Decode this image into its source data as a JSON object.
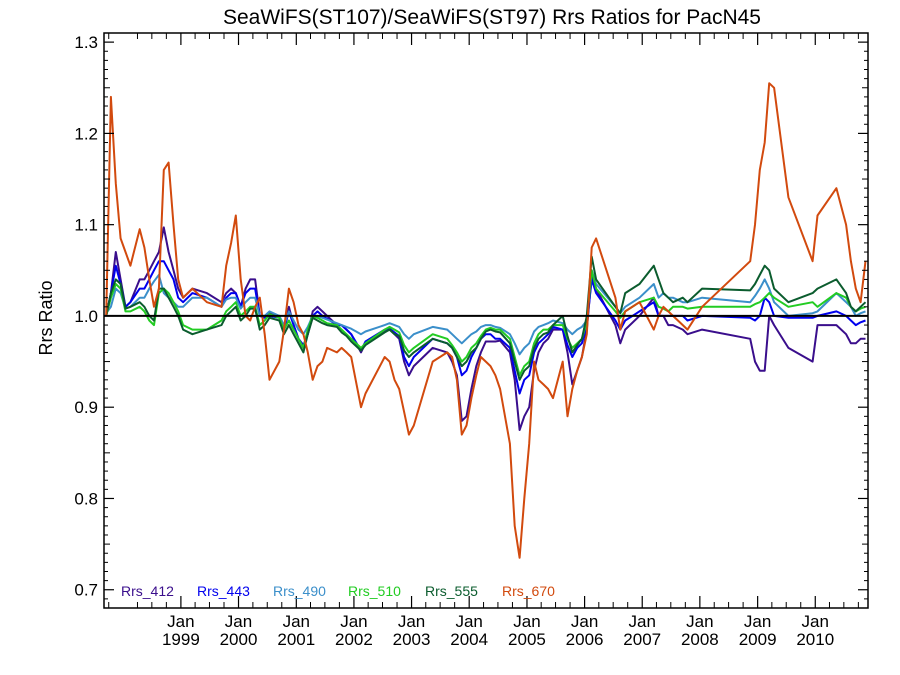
{
  "chart_data": {
    "type": "line",
    "title": "SeaWiFS(ST107)/SeaWiFS(ST97)  Rrs Ratios for PacN45",
    "ylabel": "Rrs Ratio",
    "xlabel": "",
    "ylim": [
      0.68,
      1.31
    ],
    "xlim": [
      "1997-09-01",
      "2010-12-01"
    ],
    "y_ticks": [
      "0.7",
      "0.8",
      "0.9",
      "1.0",
      "1.1",
      "1.2",
      "1.3"
    ],
    "x_ticks": [
      {
        "date": "1999-01-01",
        "line1": "Jan",
        "line2": "1999"
      },
      {
        "date": "2000-01-01",
        "line1": "Jan",
        "line2": "2000"
      },
      {
        "date": "2001-01-01",
        "line1": "Jan",
        "line2": "2001"
      },
      {
        "date": "2002-01-01",
        "line1": "Jan",
        "line2": "2002"
      },
      {
        "date": "2003-01-01",
        "line1": "Jan",
        "line2": "2003"
      },
      {
        "date": "2004-01-01",
        "line1": "Jan",
        "line2": "2004"
      },
      {
        "date": "2005-01-01",
        "line1": "Jan",
        "line2": "2005"
      },
      {
        "date": "2006-01-01",
        "line1": "Jan",
        "line2": "2006"
      },
      {
        "date": "2007-01-01",
        "line1": "Jan",
        "line2": "2007"
      },
      {
        "date": "2008-01-01",
        "line1": "Jan",
        "line2": "2008"
      },
      {
        "date": "2009-01-01",
        "line1": "Jan",
        "line2": "2009"
      },
      {
        "date": "2010-01-01",
        "line1": "Jan",
        "line2": "2010"
      }
    ],
    "reference_line": 1.0,
    "grid": false,
    "legend_position": "bottom-left",
    "x": [
      "1997-09-15",
      "1997-10-15",
      "1997-11-15",
      "1997-12-15",
      "1998-01-15",
      "1998-02-15",
      "1998-04-15",
      "1998-05-15",
      "1998-06-15",
      "1998-07-15",
      "1998-08-15",
      "1998-09-15",
      "1998-10-15",
      "1998-11-15",
      "1998-12-15",
      "1999-01-15",
      "1999-03-15",
      "1999-06-15",
      "1999-09-15",
      "1999-10-15",
      "1999-11-15",
      "1999-12-15",
      "2000-01-15",
      "2000-02-15",
      "2000-03-15",
      "2000-04-15",
      "2000-05-15",
      "2000-06-15",
      "2000-07-15",
      "2000-09-15",
      "2000-10-15",
      "2000-11-15",
      "2000-12-15",
      "2001-01-15",
      "2001-02-15",
      "2001-03-15",
      "2001-04-15",
      "2001-05-15",
      "2001-06-15",
      "2001-07-15",
      "2001-09-15",
      "2001-10-15",
      "2001-11-15",
      "2001-12-15",
      "2002-02-15",
      "2002-03-15",
      "2002-07-15",
      "2002-08-15",
      "2002-09-15",
      "2002-10-15",
      "2002-11-15",
      "2002-12-15",
      "2003-01-15",
      "2003-05-15",
      "2003-08-15",
      "2003-09-15",
      "2003-10-15",
      "2003-11-15",
      "2003-12-15",
      "2004-01-15",
      "2004-02-15",
      "2004-03-15",
      "2004-04-15",
      "2004-05-15",
      "2004-06-15",
      "2004-07-15",
      "2004-09-15",
      "2004-10-15",
      "2004-11-15",
      "2004-12-15",
      "2005-01-15",
      "2005-02-15",
      "2005-03-15",
      "2005-04-15",
      "2005-05-15",
      "2005-06-15",
      "2005-08-15",
      "2005-09-15",
      "2005-10-15",
      "2005-11-15",
      "2005-12-15",
      "2006-01-15",
      "2006-02-15",
      "2006-03-15",
      "2006-07-15",
      "2006-08-15",
      "2006-09-15",
      "2006-12-15",
      "2007-03-15",
      "2007-04-15",
      "2007-05-15",
      "2007-06-15",
      "2007-07-15",
      "2007-09-15",
      "2007-10-15",
      "2008-01-15",
      "2008-11-15",
      "2008-12-15",
      "2009-01-15",
      "2009-02-15",
      "2009-03-15",
      "2009-04-15",
      "2009-07-15",
      "2009-12-15",
      "2010-01-15",
      "2010-05-15",
      "2010-07-15",
      "2010-08-15",
      "2010-09-15",
      "2010-10-15",
      "2010-11-15"
    ],
    "series": [
      {
        "name": "Rrs_412",
        "color": "#3a0e8c",
        "values": [
          1.0,
          1.025,
          1.07,
          1.04,
          1.01,
          1.015,
          1.04,
          1.04,
          1.05,
          1.06,
          1.07,
          1.097,
          1.07,
          1.05,
          1.03,
          1.02,
          1.03,
          1.025,
          1.015,
          1.025,
          1.03,
          1.025,
          1.01,
          1.03,
          1.04,
          1.04,
          1.0,
          1.0,
          1.003,
          1.0,
          0.985,
          1.01,
          0.99,
          0.975,
          0.965,
          0.98,
          1.005,
          1.01,
          1.005,
          1.0,
          0.99,
          0.99,
          0.985,
          0.98,
          0.96,
          0.97,
          0.984,
          0.985,
          0.98,
          0.975,
          0.95,
          0.935,
          0.945,
          0.965,
          0.96,
          0.95,
          0.935,
          0.885,
          0.89,
          0.92,
          0.945,
          0.96,
          0.972,
          0.972,
          0.972,
          0.973,
          0.96,
          0.93,
          0.875,
          0.89,
          0.9,
          0.94,
          0.96,
          0.97,
          0.975,
          0.985,
          0.985,
          0.96,
          0.925,
          0.94,
          0.955,
          0.985,
          1.045,
          1.03,
          0.99,
          0.97,
          0.985,
          1.0,
          1.02,
          1.0,
          1.0,
          0.99,
          0.99,
          0.985,
          0.98,
          0.985,
          0.975,
          0.95,
          0.94,
          0.94,
          1.0,
          0.99,
          0.965,
          0.95,
          0.99,
          0.99,
          0.98,
          0.97,
          0.97,
          0.975,
          0.975
        ]
      },
      {
        "name": "Rrs_443",
        "color": "#0000ee",
        "values": [
          1.0,
          1.025,
          1.055,
          1.035,
          1.01,
          1.015,
          1.03,
          1.03,
          1.04,
          1.05,
          1.06,
          1.06,
          1.05,
          1.04,
          1.02,
          1.015,
          1.025,
          1.02,
          1.01,
          1.02,
          1.025,
          1.025,
          1.01,
          1.025,
          1.03,
          1.03,
          1.0,
          0.998,
          1.0,
          0.998,
          0.985,
          1.005,
          0.99,
          0.975,
          0.968,
          0.98,
          1.0,
          1.005,
          1.0,
          0.997,
          0.99,
          0.99,
          0.985,
          0.98,
          0.962,
          0.972,
          0.985,
          0.986,
          0.982,
          0.978,
          0.955,
          0.945,
          0.955,
          0.975,
          0.97,
          0.965,
          0.955,
          0.935,
          0.94,
          0.955,
          0.965,
          0.975,
          0.98,
          0.98,
          0.975,
          0.975,
          0.965,
          0.94,
          0.915,
          0.93,
          0.935,
          0.96,
          0.97,
          0.975,
          0.98,
          0.988,
          0.985,
          0.968,
          0.955,
          0.965,
          0.97,
          0.99,
          1.04,
          1.025,
          0.995,
          0.985,
          0.995,
          1.005,
          1.015,
          1.0,
          1.0,
          1.0,
          1.0,
          1.0,
          0.995,
          1.0,
          0.998,
          0.995,
          1.0,
          1.02,
          1.015,
          1.0,
          0.998,
          0.998,
          1.0,
          1.005,
          1.0,
          0.995,
          0.99,
          0.993,
          0.995
        ]
      },
      {
        "name": "Rrs_490",
        "color": "#3b8fca",
        "values": [
          1.003,
          1.01,
          1.03,
          1.025,
          1.008,
          1.01,
          1.02,
          1.02,
          1.03,
          1.038,
          1.045,
          1.025,
          1.02,
          1.015,
          1.01,
          1.01,
          1.02,
          1.02,
          1.01,
          1.018,
          1.02,
          1.02,
          1.008,
          1.015,
          1.02,
          1.02,
          1.0,
          1.0,
          1.005,
          1.0,
          0.99,
          1.005,
          0.995,
          0.985,
          0.98,
          0.988,
          1.0,
          1.0,
          0.998,
          0.996,
          0.992,
          0.99,
          0.988,
          0.986,
          0.98,
          0.983,
          0.99,
          0.992,
          0.99,
          0.988,
          0.98,
          0.975,
          0.98,
          0.988,
          0.985,
          0.98,
          0.975,
          0.97,
          0.975,
          0.98,
          0.983,
          0.988,
          0.99,
          0.99,
          0.988,
          0.987,
          0.98,
          0.97,
          0.958,
          0.965,
          0.97,
          0.983,
          0.988,
          0.99,
          0.992,
          0.995,
          0.992,
          0.985,
          0.98,
          0.985,
          0.988,
          0.995,
          1.05,
          1.035,
          1.01,
          1.003,
          1.01,
          1.02,
          1.035,
          1.02,
          1.025,
          1.02,
          1.02,
          1.015,
          1.015,
          1.02,
          1.015,
          1.022,
          1.03,
          1.04,
          1.03,
          1.015,
          1.0,
          1.003,
          1.005,
          1.025,
          1.015,
          1.01,
          1.0,
          1.003,
          1.005
        ]
      },
      {
        "name": "Rrs_510",
        "color": "#22cc22",
        "values": [
          1.0,
          1.02,
          1.035,
          1.03,
          1.005,
          1.005,
          1.01,
          1.005,
          0.995,
          0.99,
          1.025,
          1.03,
          1.025,
          1.015,
          1.005,
          0.99,
          0.985,
          0.985,
          0.995,
          1.005,
          1.01,
          1.015,
          1.0,
          1.005,
          1.01,
          1.01,
          0.99,
          0.995,
          1.002,
          0.998,
          0.985,
          0.995,
          0.985,
          0.975,
          0.965,
          0.985,
          1.0,
          0.998,
          0.995,
          0.992,
          0.99,
          0.985,
          0.98,
          0.975,
          0.965,
          0.97,
          0.985,
          0.988,
          0.985,
          0.982,
          0.968,
          0.96,
          0.965,
          0.98,
          0.975,
          0.968,
          0.96,
          0.95,
          0.955,
          0.965,
          0.97,
          0.978,
          0.985,
          0.987,
          0.985,
          0.985,
          0.975,
          0.955,
          0.935,
          0.945,
          0.95,
          0.97,
          0.98,
          0.985,
          0.985,
          0.99,
          0.99,
          0.975,
          0.965,
          0.97,
          0.975,
          0.993,
          1.05,
          1.03,
          1.005,
          0.998,
          1.005,
          1.015,
          1.02,
          1.01,
          1.008,
          1.005,
          1.01,
          1.01,
          1.008,
          1.01,
          1.01,
          1.013,
          1.015,
          1.02,
          1.025,
          1.02,
          1.01,
          1.015,
          1.01,
          1.025,
          1.02,
          1.01,
          1.005,
          1.008,
          1.01
        ]
      },
      {
        "name": "Rrs_555",
        "color": "#0b5c2e",
        "values": [
          1.0,
          1.025,
          1.04,
          1.035,
          1.008,
          1.01,
          1.015,
          1.01,
          1.0,
          0.995,
          1.03,
          1.03,
          1.02,
          1.01,
          1.0,
          0.985,
          0.98,
          0.985,
          0.99,
          1.0,
          1.005,
          1.01,
          0.995,
          1.0,
          1.008,
          1.008,
          0.985,
          0.99,
          0.998,
          0.995,
          0.98,
          0.99,
          0.98,
          0.97,
          0.96,
          0.98,
          0.998,
          0.995,
          0.992,
          0.99,
          0.988,
          0.982,
          0.978,
          0.972,
          0.962,
          0.968,
          0.982,
          0.985,
          0.98,
          0.978,
          0.962,
          0.955,
          0.96,
          0.975,
          0.97,
          0.965,
          0.955,
          0.945,
          0.95,
          0.96,
          0.965,
          0.975,
          0.983,
          0.985,
          0.983,
          0.982,
          0.97,
          0.95,
          0.93,
          0.94,
          0.945,
          0.965,
          0.975,
          0.98,
          0.982,
          0.99,
          1.0,
          0.978,
          0.96,
          0.968,
          0.975,
          1.0,
          1.065,
          1.04,
          1.01,
          1.003,
          1.025,
          1.035,
          1.055,
          1.04,
          1.025,
          1.02,
          1.015,
          1.02,
          1.015,
          1.03,
          1.028,
          1.035,
          1.045,
          1.055,
          1.05,
          1.03,
          1.015,
          1.025,
          1.03,
          1.04,
          1.025,
          1.01,
          1.005,
          1.01,
          1.015
        ]
      },
      {
        "name": "Rrs_670",
        "color": "#d24a0e",
        "values": [
          1.0,
          1.24,
          1.145,
          1.085,
          1.07,
          1.055,
          1.095,
          1.075,
          1.04,
          1.01,
          1.03,
          1.16,
          1.168,
          1.1,
          1.04,
          1.02,
          1.03,
          1.015,
          1.01,
          1.055,
          1.08,
          1.11,
          1.04,
          1.0,
          0.995,
          1.01,
          1.02,
          0.98,
          0.93,
          0.95,
          0.985,
          1.03,
          1.015,
          0.99,
          0.98,
          0.96,
          0.93,
          0.945,
          0.95,
          0.965,
          0.96,
          0.965,
          0.96,
          0.955,
          0.9,
          0.915,
          0.955,
          0.95,
          0.93,
          0.92,
          0.895,
          0.87,
          0.88,
          0.95,
          0.96,
          0.955,
          0.93,
          0.87,
          0.88,
          0.91,
          0.935,
          0.955,
          0.95,
          0.945,
          0.935,
          0.92,
          0.86,
          0.77,
          0.735,
          0.8,
          0.86,
          0.95,
          0.93,
          0.925,
          0.92,
          0.91,
          0.95,
          0.89,
          0.92,
          0.94,
          0.955,
          0.98,
          1.075,
          1.085,
          1.02,
          0.985,
          1.005,
          1.015,
          0.985,
          1.0,
          1.01,
          1.005,
          1.0,
          0.99,
          0.985,
          1.01,
          1.06,
          1.1,
          1.16,
          1.19,
          1.255,
          1.25,
          1.13,
          1.06,
          1.11,
          1.14,
          1.1,
          1.06,
          1.03,
          1.015,
          1.06
        ]
      }
    ]
  }
}
